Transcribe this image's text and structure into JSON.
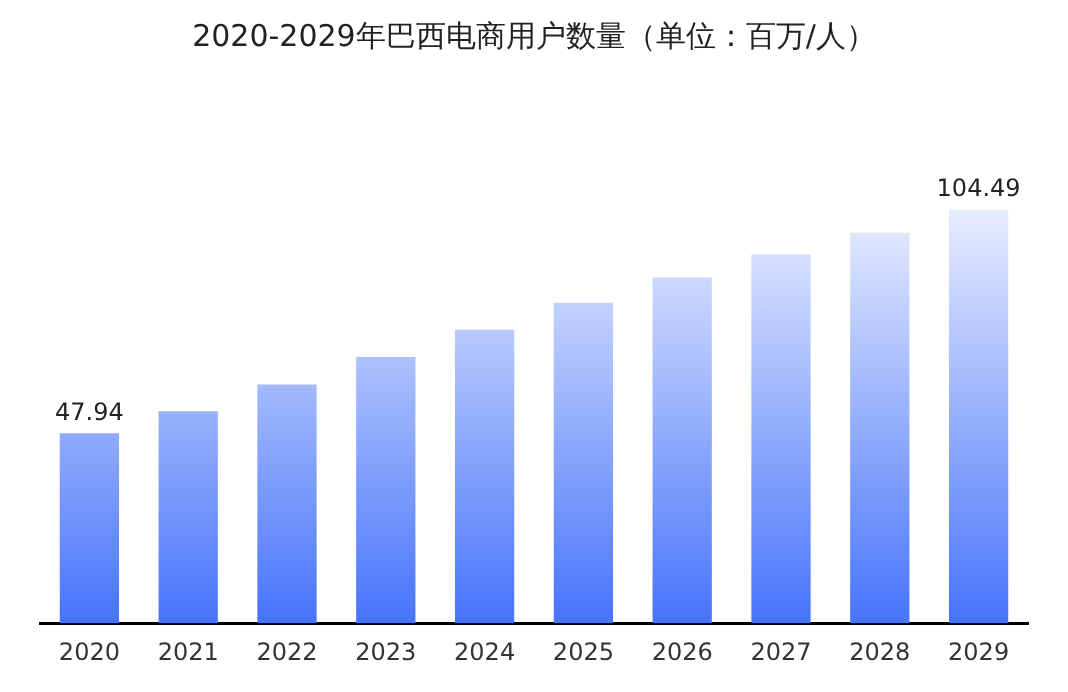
{
  "chart_data": {
    "type": "bar",
    "title": "2020-2029年巴西电商用户数量（单位：百万/人）",
    "categories": [
      "2020",
      "2021",
      "2022",
      "2023",
      "2024",
      "2025",
      "2026",
      "2027",
      "2028",
      "2029"
    ],
    "values": [
      47.94,
      53.5,
      60.3,
      67.2,
      74.1,
      80.9,
      87.3,
      93.2,
      98.6,
      104.49
    ],
    "value_labels": [
      "47.94",
      null,
      null,
      null,
      null,
      null,
      null,
      null,
      null,
      "104.49"
    ],
    "color": "#4673fb",
    "grid": false,
    "legend": false
  }
}
